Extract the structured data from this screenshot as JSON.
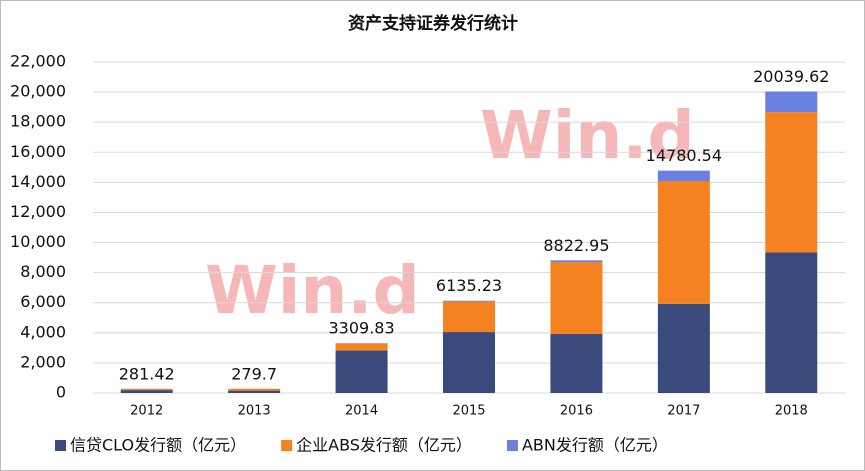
{
  "chart_data": {
    "type": "stacked_bar",
    "title": "资产支持证券发行统计",
    "categories": [
      "2012",
      "2013",
      "2014",
      "2015",
      "2016",
      "2017",
      "2018"
    ],
    "series": [
      {
        "name": "信贷CLO发行额（亿元）",
        "color": "#3b4a7d",
        "values": [
          193,
          158,
          2820,
          4050,
          3920,
          5930,
          9340
        ]
      },
      {
        "name": "企业ABS发行额（亿元）",
        "color": "#f58220",
        "values": [
          88,
          122,
          480,
          2035,
          4780,
          8160,
          9330
        ]
      },
      {
        "name": "ABN发行额（亿元）",
        "color": "#6a80e0",
        "values": [
          0,
          0,
          10,
          50,
          120,
          690,
          1370
        ]
      }
    ],
    "totals": [
      281.42,
      279.7,
      3309.83,
      6135.23,
      8822.95,
      14780.54,
      20039.62
    ],
    "ylim": [
      0,
      22000
    ],
    "yticks": [
      0,
      {
        "value": 2000,
        "label": "2,000"
      },
      {
        "value": 4000,
        "label": "4,000"
      },
      {
        "value": 6000,
        "label": "6,000"
      },
      {
        "value": 8000,
        "label": "8,000"
      },
      {
        "value": 10000,
        "label": "10,000"
      },
      {
        "value": 12000,
        "label": "12,000"
      },
      {
        "value": 14000,
        "label": "14,000"
      },
      {
        "value": 16000,
        "label": "16,000"
      },
      {
        "value": 18000,
        "label": "18,000"
      },
      {
        "value": 20000,
        "label": "20,000"
      },
      {
        "value": 22000,
        "label": "22,000"
      }
    ],
    "grid": true,
    "watermark": "Win.d",
    "legend": "bottom"
  }
}
